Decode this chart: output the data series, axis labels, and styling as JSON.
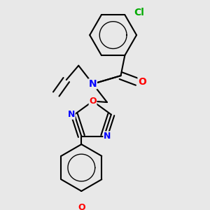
{
  "background_color": "#e8e8e8",
  "line_color": "#000000",
  "bond_width": 1.5,
  "font_size_atoms": 10,
  "atom_colors": {
    "N": "#0000ff",
    "O": "#ff0000",
    "Cl": "#00aa00",
    "C": "#000000"
  },
  "figsize": [
    3.0,
    3.0
  ],
  "dpi": 100
}
